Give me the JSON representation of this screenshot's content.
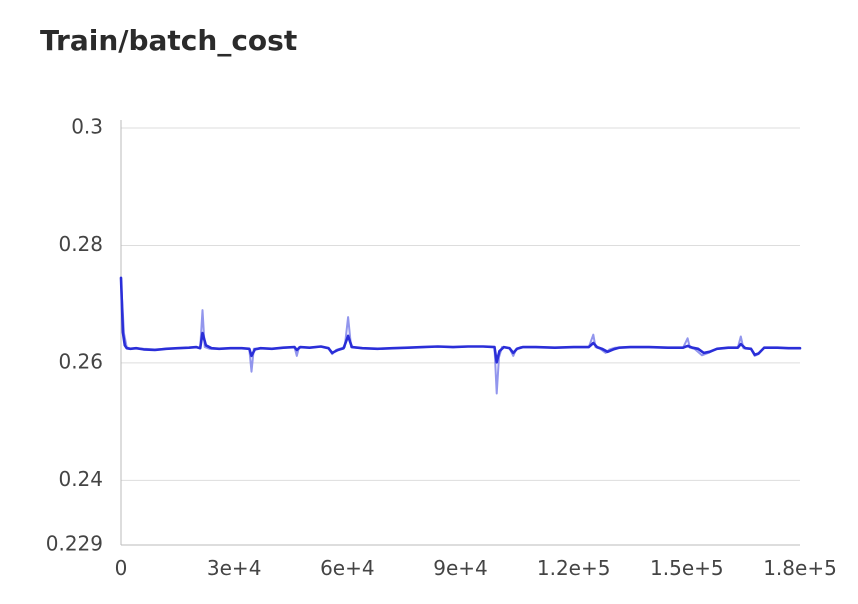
{
  "chart_data": {
    "type": "line",
    "title": "Train/batch_cost",
    "xlabel": "",
    "ylabel": "",
    "xlim": [
      0,
      180000
    ],
    "ylim": [
      0.229,
      0.3
    ],
    "x_ticks": [
      {
        "value": 0,
        "label": "0"
      },
      {
        "value": 30000,
        "label": "3e+4"
      },
      {
        "value": 60000,
        "label": "6e+4"
      },
      {
        "value": 90000,
        "label": "9e+4"
      },
      {
        "value": 120000,
        "label": "1.2e+5"
      },
      {
        "value": 150000,
        "label": "1.5e+5"
      },
      {
        "value": 180000,
        "label": "1.8e+5"
      }
    ],
    "y_ticks": [
      {
        "value": 0.3,
        "label": "0.3"
      },
      {
        "value": 0.28,
        "label": "0.28"
      },
      {
        "value": 0.26,
        "label": "0.26"
      },
      {
        "value": 0.24,
        "label": "0.24"
      },
      {
        "value": 0.229,
        "label": "0.229"
      }
    ],
    "grid": true,
    "colors": {
      "smoothed": "#2a2ed8",
      "raw": "#7f84ea",
      "grid": "#dddddd",
      "axis": "#bbbbbb"
    },
    "series": [
      {
        "role": "raw",
        "x": [
          0,
          800,
          1500,
          2500,
          4000,
          6000,
          9000,
          12000,
          15000,
          18000,
          20000,
          21000,
          21600,
          22200,
          23500,
          26000,
          29000,
          32000,
          34000,
          34600,
          35200,
          37000,
          40000,
          43000,
          46000,
          46600,
          47200,
          50000,
          53000,
          55000,
          56000,
          57000,
          58500,
          59300,
          60200,
          61000,
          64000,
          68000,
          72000,
          76000,
          80000,
          84000,
          88000,
          92000,
          96000,
          99000,
          99600,
          100200,
          101000,
          103000,
          104000,
          104800,
          106000,
          110000,
          115000,
          120000,
          124000,
          125200,
          125800,
          127000,
          128500,
          129500,
          131000,
          135000,
          140000,
          145000,
          149000,
          150200,
          150800,
          152000,
          154000,
          156000,
          158000,
          161000,
          163500,
          164300,
          165000,
          167000,
          168000,
          169000,
          170500,
          174000,
          177000,
          180000
        ],
        "y": [
          0.274,
          0.265,
          0.2627,
          0.2624,
          0.2625,
          0.2624,
          0.2623,
          0.2624,
          0.2625,
          0.2626,
          0.2627,
          0.2625,
          0.269,
          0.2627,
          0.2624,
          0.2624,
          0.2625,
          0.2625,
          0.2624,
          0.2585,
          0.2624,
          0.2625,
          0.2624,
          0.2626,
          0.2627,
          0.2612,
          0.2627,
          0.2626,
          0.2628,
          0.2625,
          0.2615,
          0.2622,
          0.2625,
          0.2627,
          0.2678,
          0.2627,
          0.2625,
          0.2624,
          0.2625,
          0.2626,
          0.2627,
          0.2628,
          0.2627,
          0.2628,
          0.2628,
          0.2627,
          0.2548,
          0.261,
          0.2627,
          0.2625,
          0.2612,
          0.2624,
          0.2627,
          0.2627,
          0.2626,
          0.2627,
          0.2627,
          0.2648,
          0.2627,
          0.2624,
          0.2617,
          0.2623,
          0.2626,
          0.2627,
          0.2627,
          0.2626,
          0.2626,
          0.2642,
          0.2626,
          0.2624,
          0.2613,
          0.2618,
          0.2624,
          0.2626,
          0.2626,
          0.2645,
          0.2625,
          0.2624,
          0.2612,
          0.2615,
          0.2626,
          0.2626,
          0.2625,
          0.2625
        ]
      },
      {
        "role": "smoothed",
        "x": [
          0,
          500,
          1000,
          1500,
          2500,
          4000,
          6000,
          9000,
          12000,
          15000,
          18000,
          20000,
          21000,
          21600,
          22500,
          24000,
          26000,
          29000,
          32000,
          34000,
          34600,
          35500,
          37000,
          40000,
          43000,
          46000,
          46600,
          47500,
          50000,
          53000,
          55000,
          56000,
          57500,
          59000,
          60200,
          61200,
          64000,
          68000,
          72000,
          76000,
          80000,
          84000,
          88000,
          92000,
          96000,
          99000,
          99600,
          100300,
          101500,
          103000,
          104000,
          105000,
          106500,
          110000,
          115000,
          120000,
          124000,
          125200,
          126200,
          127500,
          129000,
          130500,
          132000,
          135000,
          140000,
          145000,
          149000,
          150200,
          151500,
          153000,
          154500,
          156000,
          158000,
          161000,
          163500,
          164300,
          165500,
          167000,
          168000,
          169000,
          170500,
          174000,
          177000,
          180000
        ],
        "y": [
          0.2745,
          0.2652,
          0.263,
          0.2625,
          0.2624,
          0.2625,
          0.2623,
          0.2622,
          0.2624,
          0.2625,
          0.2626,
          0.2627,
          0.2625,
          0.2651,
          0.263,
          0.2625,
          0.2624,
          0.2625,
          0.2625,
          0.2624,
          0.2612,
          0.2623,
          0.2625,
          0.2624,
          0.2626,
          0.2627,
          0.2622,
          0.2627,
          0.2626,
          0.2628,
          0.2625,
          0.2617,
          0.2622,
          0.2625,
          0.2646,
          0.2627,
          0.2625,
          0.2624,
          0.2625,
          0.2626,
          0.2627,
          0.2628,
          0.2627,
          0.2628,
          0.2628,
          0.2627,
          0.2601,
          0.262,
          0.2627,
          0.2625,
          0.2617,
          0.2624,
          0.2627,
          0.2627,
          0.2626,
          0.2627,
          0.2627,
          0.2634,
          0.2627,
          0.2624,
          0.2619,
          0.2623,
          0.2626,
          0.2627,
          0.2627,
          0.2626,
          0.2626,
          0.2629,
          0.2626,
          0.2624,
          0.2617,
          0.2619,
          0.2624,
          0.2626,
          0.2626,
          0.2632,
          0.2625,
          0.2624,
          0.2614,
          0.2616,
          0.2626,
          0.2626,
          0.2625,
          0.2625
        ]
      }
    ]
  }
}
